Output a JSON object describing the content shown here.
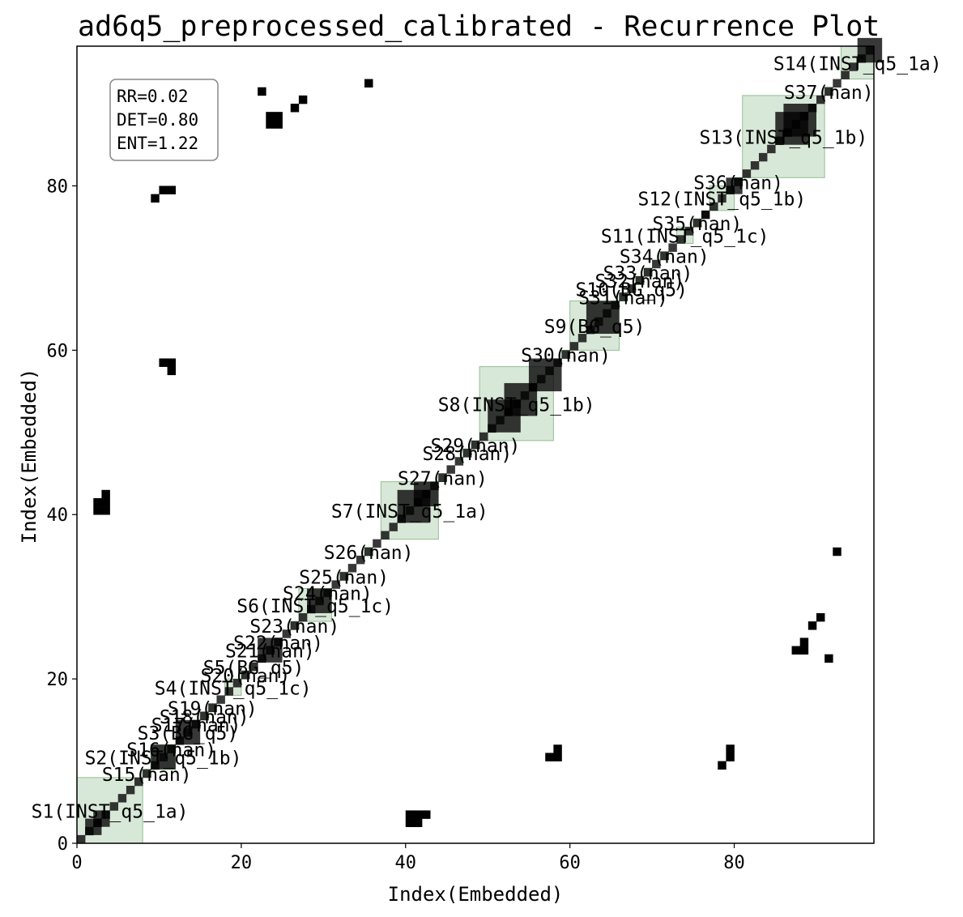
{
  "chart_data": {
    "type": "heatmap",
    "subtype": "recurrence_plot",
    "title": "ad6q5_preprocessed_calibrated - Recurrence Plot",
    "xlabel": "Index(Embedded)",
    "ylabel": "Index(Embedded)",
    "xlim": [
      0,
      97
    ],
    "ylim": [
      0,
      97
    ],
    "x_ticks": [
      0,
      20,
      40,
      60,
      80
    ],
    "y_ticks": [
      0,
      20,
      40,
      60,
      80
    ],
    "colors": {
      "recurrence": "#000000",
      "segment_fill": "#8fbc8f",
      "segment_edge": "#5a9a5a"
    },
    "stats": [
      "RR=0.02",
      "DET=0.80",
      "ENT=1.22"
    ],
    "segments": [
      {
        "label": "S1(INST_q5_1a)",
        "start": 0,
        "end": 8
      },
      {
        "label": "S2(INST_q5_1b)",
        "start": 9,
        "end": 12
      },
      {
        "label": "S3(BG_q5)",
        "start": 13,
        "end": 14
      },
      {
        "label": "S4(INST_q5_1c)",
        "start": 18,
        "end": 20
      },
      {
        "label": "S5(BG_q5)",
        "start": 21,
        "end": 22
      },
      {
        "label": "S6(INST_q5_1c)",
        "start": 27,
        "end": 31
      },
      {
        "label": "S7(INST_q5_1a)",
        "start": 37,
        "end": 44
      },
      {
        "label": "S8(INST_q5_1b)",
        "start": 49,
        "end": 58
      },
      {
        "label": "S9(BG_q5)",
        "start": 60,
        "end": 66
      },
      {
        "label": "S10(BG_q5)",
        "start": 67,
        "end": 68
      },
      {
        "label": "S11(INST_q5_1c)",
        "start": 73,
        "end": 75
      },
      {
        "label": "S12(INST_q5_1b)",
        "start": 77,
        "end": 80
      },
      {
        "label": "S13(INST_q5_1b)",
        "start": 81,
        "end": 91
      },
      {
        "label": "S14(INST_q5_1a)",
        "start": 93,
        "end": 97
      },
      {
        "label": "S15(nan)",
        "start": 8,
        "end": 9
      },
      {
        "label": "S16(nan)",
        "start": 11,
        "end": 12
      },
      {
        "label": "S17(nan)",
        "start": 14,
        "end": 15
      },
      {
        "label": "S18(nan)",
        "start": 15,
        "end": 16
      },
      {
        "label": "S19(nan)",
        "start": 16,
        "end": 17
      },
      {
        "label": "S20(nan)",
        "start": 20,
        "end": 21
      },
      {
        "label": "S21(nan)",
        "start": 23,
        "end": 24
      },
      {
        "label": "S22(nan)",
        "start": 24,
        "end": 25
      },
      {
        "label": "S23(nan)",
        "start": 26,
        "end": 27
      },
      {
        "label": "S24(nan)",
        "start": 30,
        "end": 31
      },
      {
        "label": "S25(nan)",
        "start": 32,
        "end": 33
      },
      {
        "label": "S26(nan)",
        "start": 35,
        "end": 36
      },
      {
        "label": "S27(nan)",
        "start": 44,
        "end": 45
      },
      {
        "label": "S28(nan)",
        "start": 47,
        "end": 48
      },
      {
        "label": "S29(nan)",
        "start": 48,
        "end": 49
      },
      {
        "label": "S30(nan)",
        "start": 59,
        "end": 60
      },
      {
        "label": "S31(nan)",
        "start": 66,
        "end": 67
      },
      {
        "label": "S32(nan)",
        "start": 68,
        "end": 69
      },
      {
        "label": "S33(nan)",
        "start": 69,
        "end": 70
      },
      {
        "label": "S34(nan)",
        "start": 71,
        "end": 72
      },
      {
        "label": "S35(nan)",
        "start": 75,
        "end": 76
      },
      {
        "label": "S36(nan)",
        "start": 80,
        "end": 81
      },
      {
        "label": "S37(nan)",
        "start": 91,
        "end": 92
      }
    ],
    "diagonal_blocks": [
      [
        1,
        3
      ],
      [
        2,
        4
      ],
      [
        9,
        12
      ],
      [
        12,
        15
      ],
      [
        22,
        25
      ],
      [
        28,
        31
      ],
      [
        39,
        43
      ],
      [
        41,
        44
      ],
      [
        50,
        54
      ],
      [
        52,
        56
      ],
      [
        55,
        59
      ],
      [
        62,
        66
      ],
      [
        76,
        77
      ],
      [
        79,
        81
      ],
      [
        85,
        89
      ],
      [
        86,
        90
      ],
      [
        95,
        98
      ]
    ],
    "recurrence_points": [
      [
        2,
        40
      ],
      [
        2,
        41
      ],
      [
        3,
        40
      ],
      [
        3,
        41
      ],
      [
        3,
        42
      ],
      [
        9,
        78
      ],
      [
        10,
        79
      ],
      [
        11,
        79
      ],
      [
        10,
        58
      ],
      [
        11,
        58
      ],
      [
        11,
        57
      ],
      [
        22,
        91
      ],
      [
        23,
        87
      ],
      [
        23,
        88
      ],
      [
        24,
        88
      ],
      [
        24,
        87
      ],
      [
        26,
        89
      ],
      [
        27,
        90
      ],
      [
        35,
        92
      ],
      [
        40,
        2
      ],
      [
        40,
        3
      ],
      [
        41,
        2
      ],
      [
        41,
        3
      ],
      [
        42,
        3
      ],
      [
        57,
        10
      ],
      [
        58,
        10
      ],
      [
        58,
        11
      ],
      [
        78,
        9
      ],
      [
        79,
        10
      ],
      [
        79,
        11
      ],
      [
        87,
        23
      ],
      [
        88,
        23
      ],
      [
        88,
        24
      ],
      [
        89,
        26
      ],
      [
        90,
        27
      ],
      [
        91,
        22
      ],
      [
        92,
        35
      ]
    ]
  }
}
